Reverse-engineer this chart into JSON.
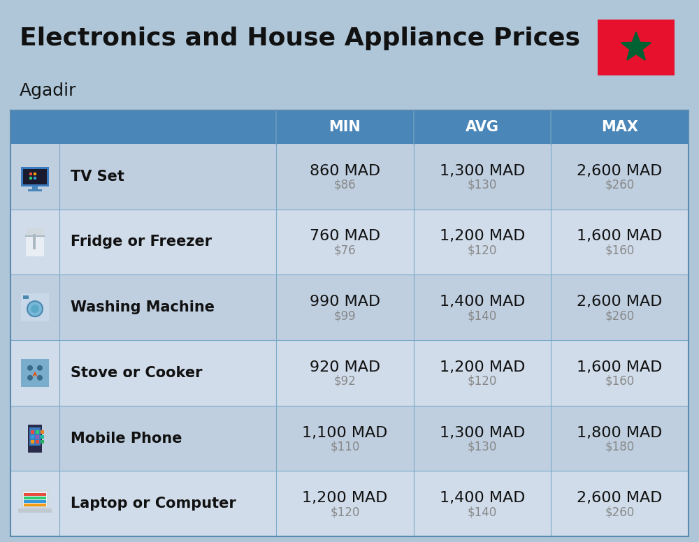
{
  "title": "Electronics and House Appliance Prices",
  "subtitle": "Agadir",
  "bg_color": "#aec6d8",
  "header_color": "#4a86b8",
  "header_text_color": "#ffffff",
  "row_bg_odd": "#bfcfe0",
  "row_bg_even": "#d0dcea",
  "divider_color": "#7aaac8",
  "columns": [
    "MIN",
    "AVG",
    "MAX"
  ],
  "items": [
    {
      "name": "TV Set",
      "min_mad": "860 MAD",
      "min_usd": "$86",
      "avg_mad": "1,300 MAD",
      "avg_usd": "$130",
      "max_mad": "2,600 MAD",
      "max_usd": "$260"
    },
    {
      "name": "Fridge or Freezer",
      "min_mad": "760 MAD",
      "min_usd": "$76",
      "avg_mad": "1,200 MAD",
      "avg_usd": "$120",
      "max_mad": "1,600 MAD",
      "max_usd": "$160"
    },
    {
      "name": "Washing Machine",
      "min_mad": "990 MAD",
      "min_usd": "$99",
      "avg_mad": "1,400 MAD",
      "avg_usd": "$140",
      "max_mad": "2,600 MAD",
      "max_usd": "$260"
    },
    {
      "name": "Stove or Cooker",
      "min_mad": "920 MAD",
      "min_usd": "$92",
      "avg_mad": "1,200 MAD",
      "avg_usd": "$120",
      "max_mad": "1,600 MAD",
      "max_usd": "$160"
    },
    {
      "name": "Mobile Phone",
      "min_mad": "1,100 MAD",
      "min_usd": "$110",
      "avg_mad": "1,300 MAD",
      "avg_usd": "$130",
      "max_mad": "1,800 MAD",
      "max_usd": "$180"
    },
    {
      "name": "Laptop or Computer",
      "min_mad": "1,200 MAD",
      "min_usd": "$120",
      "avg_mad": "1,400 MAD",
      "avg_usd": "$140",
      "max_mad": "2,600 MAD",
      "max_usd": "$260"
    }
  ],
  "title_fontsize": 26,
  "subtitle_fontsize": 18,
  "header_fontsize": 15,
  "item_name_fontsize": 15,
  "mad_fontsize": 16,
  "usd_fontsize": 12,
  "flag_color": "#e8112d",
  "flag_star_color": "#006233"
}
